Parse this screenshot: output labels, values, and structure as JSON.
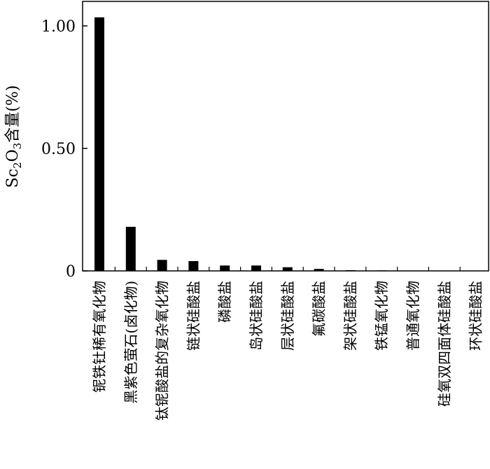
{
  "chart_data": {
    "type": "bar",
    "title": "",
    "xlabel": "",
    "ylabel": "Sc2O3含量(%)",
    "ylabel_parts": {
      "base": "Sc",
      "sub1": "2",
      "mid": "O",
      "sub2": "3",
      "suffix": "含量(%)"
    },
    "ylim": [
      0,
      1.07
    ],
    "yticks": [
      0,
      0.5,
      1.0
    ],
    "ytick_labels": [
      "0",
      "0.50",
      "1.00"
    ],
    "grid": false,
    "legend": "none",
    "bar_color": "#000000",
    "categories": [
      "铌铁钍稀有氧化物",
      "黑紫色萤石(卤化物)",
      "钛铌酸盐的复杂氧化物",
      "链状硅酸盐",
      "磷酸盐",
      "岛状硅酸盐",
      "层状硅酸盐",
      "氟碳酸盐",
      "架状硅酸盐",
      "铁锰氧化物",
      "普通氧化物",
      "硅氧双四面体硅酸盐",
      "环状硅酸盐"
    ],
    "values": [
      1.035,
      0.18,
      0.045,
      0.04,
      0.022,
      0.022,
      0.015,
      0.008,
      0.003,
      0.002,
      0.0,
      0.0,
      0.0
    ]
  }
}
